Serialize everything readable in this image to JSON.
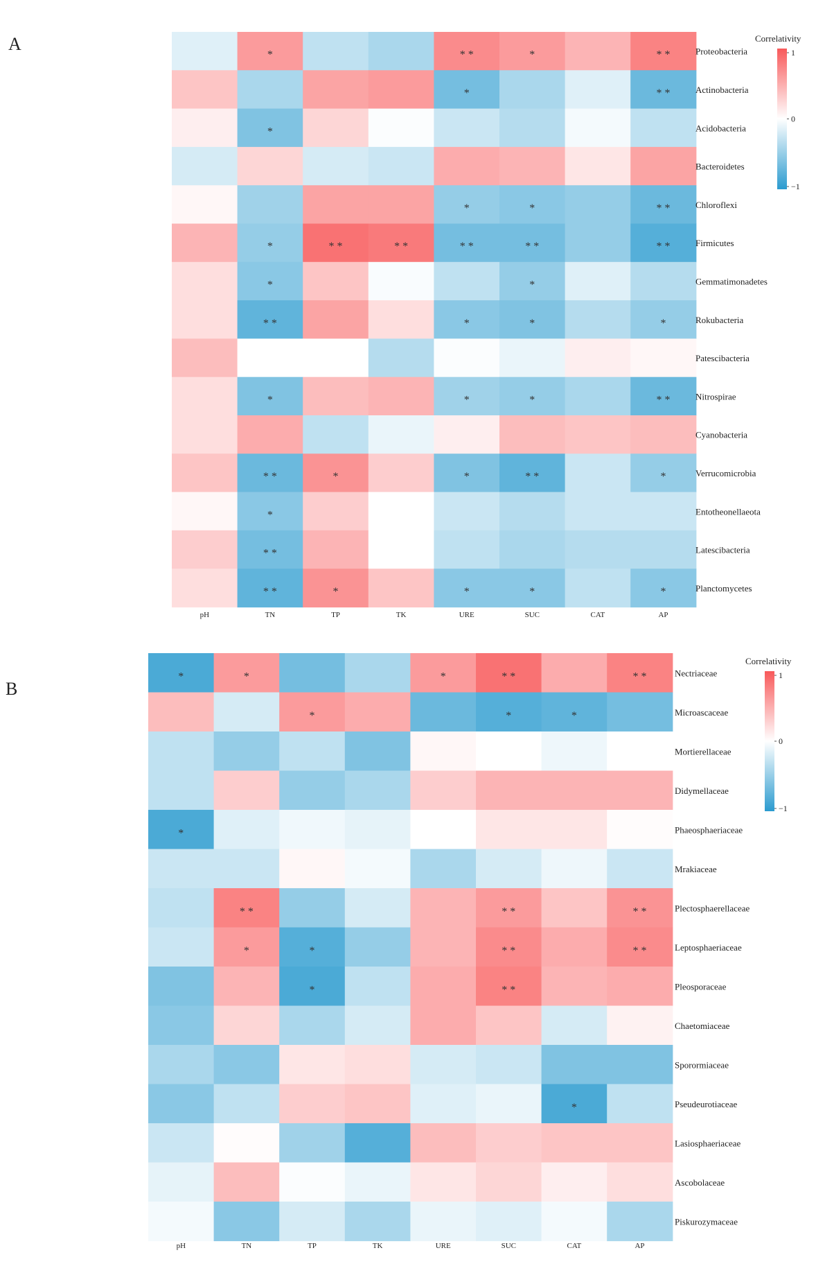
{
  "chart_data": [
    {
      "type": "heatmap",
      "panel_label": "A",
      "columns": [
        "pH",
        "TN",
        "TP",
        "TK",
        "URE",
        "SUC",
        "CAT",
        "AP"
      ],
      "rows": [
        "Proteobacteria",
        "Actinobacteria",
        "Acidobacteria",
        "Bacteroidetes",
        "Chloroflexi",
        "Firmicutes",
        "Gemmatimonadetes",
        "Rokubacteria",
        "Patescibacteria",
        "Nitrospirae",
        "Cyanobacteria",
        "Verrucomicrobia",
        "Entotheonellaeota",
        "Latescibacteria",
        "Planctomycetes"
      ],
      "values": [
        [
          -0.15,
          0.6,
          -0.3,
          -0.4,
          0.7,
          0.6,
          0.45,
          0.75
        ],
        [
          0.35,
          -0.4,
          0.55,
          0.6,
          -0.65,
          -0.4,
          -0.15,
          -0.7
        ],
        [
          0.1,
          -0.6,
          0.25,
          -0.02,
          -0.25,
          -0.35,
          -0.05,
          -0.3
        ],
        [
          -0.2,
          0.25,
          -0.2,
          -0.25,
          0.5,
          0.45,
          0.15,
          0.55
        ],
        [
          0.05,
          -0.45,
          0.55,
          0.55,
          -0.5,
          -0.55,
          -0.5,
          -0.7
        ],
        [
          0.45,
          -0.5,
          0.85,
          0.8,
          -0.65,
          -0.65,
          -0.5,
          -0.8
        ],
        [
          0.2,
          -0.55,
          0.35,
          -0.03,
          -0.3,
          -0.5,
          -0.15,
          -0.35
        ],
        [
          0.2,
          -0.75,
          0.55,
          0.2,
          -0.55,
          -0.6,
          -0.35,
          -0.5
        ],
        [
          0.4,
          0.0,
          0.0,
          -0.35,
          -0.02,
          -0.1,
          0.1,
          0.05
        ],
        [
          0.2,
          -0.6,
          0.4,
          0.45,
          -0.45,
          -0.5,
          -0.4,
          -0.7
        ],
        [
          0.2,
          0.5,
          -0.3,
          -0.1,
          0.1,
          0.4,
          0.35,
          0.4
        ],
        [
          0.35,
          -0.7,
          0.65,
          0.3,
          -0.6,
          -0.75,
          -0.25,
          -0.5
        ],
        [
          0.05,
          -0.55,
          0.3,
          0.0,
          -0.25,
          -0.35,
          -0.25,
          -0.25
        ],
        [
          0.3,
          -0.65,
          0.45,
          0.0,
          -0.3,
          -0.4,
          -0.35,
          -0.35
        ],
        [
          0.2,
          -0.75,
          0.65,
          0.35,
          -0.55,
          -0.55,
          -0.3,
          -0.55
        ]
      ],
      "significance": [
        [
          "",
          "*",
          "",
          "",
          "**",
          "*",
          "",
          "**"
        ],
        [
          "",
          "",
          "",
          "",
          "*",
          "",
          "",
          "**"
        ],
        [
          "",
          "*",
          "",
          "",
          "",
          "",
          "",
          ""
        ],
        [
          "",
          "",
          "",
          "",
          "",
          "",
          "",
          ""
        ],
        [
          "",
          "",
          "",
          "",
          "*",
          "*",
          "",
          "**"
        ],
        [
          "",
          "*",
          "**",
          "**",
          "**",
          "**",
          "",
          "**"
        ],
        [
          "",
          "*",
          "",
          "",
          "",
          "*",
          "",
          ""
        ],
        [
          "",
          "**",
          "",
          "",
          "*",
          "*",
          "",
          "*"
        ],
        [
          "",
          "",
          "",
          "",
          "",
          "",
          "",
          ""
        ],
        [
          "",
          "*",
          "",
          "",
          "*",
          "*",
          "",
          "**"
        ],
        [
          "",
          "",
          "",
          "",
          "",
          "",
          "",
          ""
        ],
        [
          "",
          "**",
          "*",
          "",
          "*",
          "**",
          "",
          "*"
        ],
        [
          "",
          "*",
          "",
          "",
          "",
          "",
          "",
          ""
        ],
        [
          "",
          "**",
          "",
          "",
          "",
          "",
          "",
          ""
        ],
        [
          "",
          "**",
          "*",
          "",
          "*",
          "*",
          "",
          "*"
        ]
      ],
      "legend": {
        "title": "Correlativity",
        "ticks": [
          "1",
          "0",
          "−1"
        ],
        "range": [
          -1,
          1
        ]
      },
      "colors": {
        "positive": "#F8595A",
        "zero": "#FFFFFF",
        "negative": "#2B9BCF"
      }
    },
    {
      "type": "heatmap",
      "panel_label": "B",
      "columns": [
        "pH",
        "TN",
        "TP",
        "TK",
        "URE",
        "SUC",
        "CAT",
        "AP"
      ],
      "rows": [
        "Nectriaceae",
        "Microascaceae",
        "Mortierellaceae",
        "Didymellaceae",
        "Phaeosphaeriaceae",
        "Mrakiaceae",
        "Plectosphaerellaceae",
        "Leptosphaeriaceae",
        "Pleosporaceae",
        "Chaetomiaceae",
        "Sporormiaceae",
        "Pseudeurotiaceae",
        "Lasiosphaeriaceae",
        "Ascobolaceae",
        "Piskurozymaceae"
      ],
      "values": [
        [
          -0.85,
          0.6,
          -0.65,
          -0.4,
          0.6,
          0.85,
          0.5,
          0.75
        ],
        [
          0.4,
          -0.2,
          0.6,
          0.5,
          -0.7,
          -0.8,
          -0.75,
          -0.65
        ],
        [
          -0.3,
          -0.5,
          -0.3,
          -0.6,
          0.05,
          0.0,
          -0.08,
          0.0
        ],
        [
          -0.3,
          0.3,
          -0.5,
          -0.4,
          0.3,
          0.45,
          0.45,
          0.45
        ],
        [
          -0.85,
          -0.15,
          -0.07,
          -0.12,
          0.0,
          0.15,
          0.15,
          0.02
        ],
        [
          -0.25,
          -0.25,
          0.05,
          -0.05,
          -0.4,
          -0.2,
          -0.08,
          -0.25
        ],
        [
          -0.3,
          0.75,
          -0.5,
          -0.2,
          0.45,
          0.6,
          0.35,
          0.65
        ],
        [
          -0.25,
          0.6,
          -0.8,
          -0.5,
          0.45,
          0.7,
          0.5,
          0.7
        ],
        [
          -0.6,
          0.45,
          -0.85,
          -0.3,
          0.5,
          0.75,
          0.45,
          0.5
        ],
        [
          -0.55,
          0.25,
          -0.4,
          -0.2,
          0.5,
          0.35,
          -0.2,
          0.08
        ],
        [
          -0.4,
          -0.55,
          0.15,
          0.2,
          -0.2,
          -0.25,
          -0.6,
          -0.6
        ],
        [
          -0.55,
          -0.3,
          0.3,
          0.35,
          -0.15,
          -0.1,
          -0.85,
          -0.3
        ],
        [
          -0.25,
          0.02,
          -0.45,
          -0.8,
          0.4,
          0.3,
          0.35,
          0.35
        ],
        [
          -0.12,
          0.4,
          -0.02,
          -0.1,
          0.15,
          0.25,
          0.1,
          0.2
        ],
        [
          -0.05,
          -0.55,
          -0.2,
          -0.4,
          -0.1,
          -0.15,
          -0.05,
          -0.4
        ]
      ],
      "significance": [
        [
          "*",
          "*",
          "",
          "",
          "*",
          "**",
          "",
          "**"
        ],
        [
          "",
          "",
          "*",
          "",
          "",
          "*",
          "*",
          ""
        ],
        [
          "",
          "",
          "",
          "",
          "",
          "",
          "",
          ""
        ],
        [
          "",
          "",
          "",
          "",
          "",
          "",
          "",
          ""
        ],
        [
          "*",
          "",
          "",
          "",
          "",
          "",
          "",
          ""
        ],
        [
          "",
          "",
          "",
          "",
          "",
          "",
          "",
          ""
        ],
        [
          "",
          "**",
          "",
          "",
          "",
          "**",
          "",
          "**"
        ],
        [
          "",
          "*",
          "*",
          "",
          "",
          "**",
          "",
          "**"
        ],
        [
          "",
          "",
          "*",
          "",
          "",
          "**",
          "",
          ""
        ],
        [
          "",
          "",
          "",
          "",
          "",
          "",
          "",
          ""
        ],
        [
          "",
          "",
          "",
          "",
          "",
          "",
          "",
          ""
        ],
        [
          "",
          "",
          "",
          "",
          "",
          "",
          "*",
          ""
        ],
        [
          "",
          "",
          "",
          "",
          "",
          "",
          "",
          ""
        ],
        [
          "",
          "",
          "",
          "",
          "",
          "",
          "",
          ""
        ],
        [
          "",
          "",
          "",
          "",
          "",
          "",
          "",
          ""
        ]
      ],
      "legend": {
        "title": "Correlativity",
        "ticks": [
          "1",
          "0",
          "−1"
        ],
        "range": [
          -1,
          1
        ]
      },
      "colors": {
        "positive": "#F8595A",
        "zero": "#FFFFFF",
        "negative": "#2B9BCF"
      }
    }
  ]
}
